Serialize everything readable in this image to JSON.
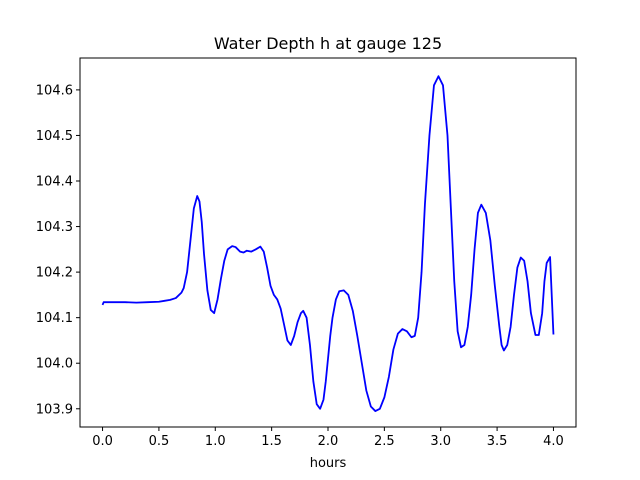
{
  "chart_data": {
    "type": "line",
    "title": "Water Depth h at gauge 125",
    "xlabel": "hours",
    "ylabel": "",
    "xlim": [
      -0.2,
      4.2
    ],
    "ylim": [
      103.86,
      104.67
    ],
    "xticks": [
      "0.0",
      "0.5",
      "1.0",
      "1.5",
      "2.0",
      "2.5",
      "3.0",
      "3.5",
      "4.0"
    ],
    "yticks": [
      "103.9",
      "104.0",
      "104.1",
      "104.2",
      "104.3",
      "104.4",
      "104.5",
      "104.6"
    ],
    "grid": false,
    "line_color": "#0000ff",
    "series": [
      {
        "x": [
          0.0,
          0.01,
          0.1,
          0.2,
          0.3,
          0.4,
          0.5,
          0.55,
          0.6,
          0.65,
          0.7,
          0.72,
          0.75,
          0.78,
          0.81,
          0.84,
          0.86,
          0.88,
          0.9,
          0.93,
          0.96,
          0.99,
          1.02,
          1.05,
          1.08,
          1.11,
          1.15,
          1.18,
          1.22,
          1.25,
          1.28,
          1.32,
          1.36,
          1.4,
          1.43,
          1.46,
          1.49,
          1.52,
          1.55,
          1.58,
          1.61,
          1.64,
          1.67,
          1.7,
          1.73,
          1.76,
          1.78,
          1.81,
          1.84,
          1.87,
          1.9,
          1.93,
          1.96,
          1.98,
          2.0,
          2.02,
          2.04,
          2.07,
          2.1,
          2.14,
          2.18,
          2.22,
          2.26,
          2.3,
          2.34,
          2.38,
          2.42,
          2.46,
          2.5,
          2.54,
          2.58,
          2.62,
          2.66,
          2.7,
          2.74,
          2.77,
          2.8,
          2.83,
          2.86,
          2.9,
          2.94,
          2.98,
          3.02,
          3.06,
          3.09,
          3.12,
          3.15,
          3.18,
          3.21,
          3.24,
          3.27,
          3.3,
          3.33,
          3.36,
          3.4,
          3.44,
          3.48,
          3.52,
          3.54,
          3.56,
          3.59,
          3.62,
          3.65,
          3.68,
          3.71,
          3.74,
          3.77,
          3.8,
          3.84,
          3.87,
          3.9,
          3.92,
          3.94,
          3.97,
          4.0
        ],
        "y": [
          104.128,
          104.134,
          104.134,
          104.134,
          104.133,
          104.134,
          104.135,
          104.137,
          104.139,
          104.143,
          104.155,
          104.165,
          104.2,
          104.27,
          104.34,
          104.367,
          104.355,
          104.31,
          104.24,
          104.16,
          104.117,
          104.11,
          104.14,
          104.185,
          104.225,
          104.25,
          104.257,
          104.255,
          104.245,
          104.243,
          104.247,
          104.245,
          104.25,
          104.256,
          104.245,
          104.21,
          104.17,
          104.15,
          104.14,
          104.12,
          104.085,
          104.05,
          104.04,
          104.06,
          104.09,
          104.11,
          104.115,
          104.1,
          104.04,
          103.96,
          103.91,
          103.9,
          103.92,
          103.96,
          104.01,
          104.06,
          104.1,
          104.14,
          104.158,
          104.16,
          104.15,
          104.115,
          104.06,
          104.0,
          103.94,
          103.905,
          103.895,
          103.9,
          103.925,
          103.97,
          104.03,
          104.065,
          104.075,
          104.07,
          104.057,
          104.06,
          104.1,
          104.2,
          104.35,
          104.5,
          104.61,
          104.63,
          104.61,
          104.5,
          104.34,
          104.18,
          104.07,
          104.035,
          104.04,
          104.08,
          104.15,
          104.25,
          104.33,
          104.348,
          104.33,
          104.27,
          104.17,
          104.08,
          104.04,
          104.028,
          104.04,
          104.08,
          104.15,
          104.21,
          104.232,
          104.225,
          104.18,
          104.11,
          104.062,
          104.062,
          104.11,
          104.18,
          104.22,
          104.233,
          104.063
        ]
      }
    ]
  }
}
